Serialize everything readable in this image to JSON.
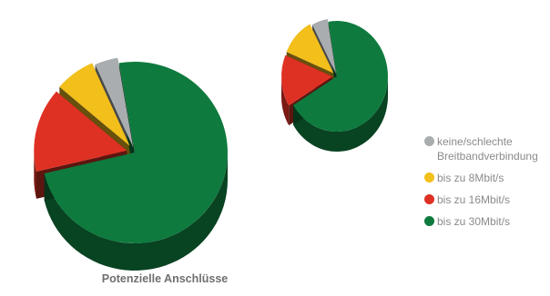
{
  "chart_data": [
    {
      "type": "pie",
      "style": "3d-exploded",
      "slices": [
        {
          "key": "none",
          "label": "keine/schlechte Breitbandverbindung",
          "value": 4,
          "color": "#a9adaf"
        },
        {
          "key": "8",
          "label": "bis zu 8Mbit/s",
          "value": 7,
          "color": "#f2bf1b"
        },
        {
          "key": "16",
          "label": "bis zu 16Mbit/s",
          "value": 15,
          "color": "#de3124"
        },
        {
          "key": "30",
          "label": "bis zu 30Mbit/s",
          "value": 74,
          "color": "#0e7a3e"
        }
      ]
    },
    {
      "type": "pie",
      "style": "3d-exploded",
      "slices": [
        {
          "key": "none",
          "label": "keine/schlechte Breitbandverbindung",
          "value": 5,
          "color": "#a9adaf"
        },
        {
          "key": "8",
          "label": "bis zu 8Mbit/s",
          "value": 11,
          "color": "#f2bf1b"
        },
        {
          "key": "16",
          "label": "bis zu 16Mbit/s",
          "value": 15,
          "color": "#de3124"
        },
        {
          "key": "30",
          "label": "bis zu 30Mbit/s",
          "value": 69,
          "color": "#0e7a3e"
        }
      ]
    }
  ],
  "caption": "Potenzielle Anschlüsse",
  "legend": {
    "placement": "right",
    "items": [
      {
        "label": "keine/schlechte Breitbandverbindung",
        "color": "#a9adaf"
      },
      {
        "label": "bis zu 8Mbit/s",
        "color": "#f2bf1b"
      },
      {
        "label": "bis zu 16Mbit/s",
        "color": "#de3124"
      },
      {
        "label": "bis zu 30Mbit/s",
        "color": "#0e7a3e"
      }
    ]
  }
}
